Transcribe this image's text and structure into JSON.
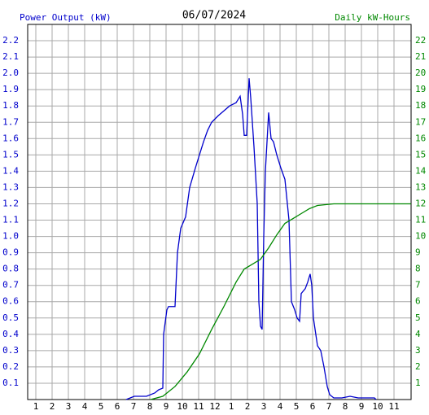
{
  "chart_data": {
    "type": "line",
    "title": "06/07/2024",
    "y_label": "Power Output (kW)",
    "y2_label": "Daily kW-Hours",
    "xlim": [
      0.5,
      24.05
    ],
    "xticks": [
      1,
      2,
      3,
      4,
      5,
      6,
      7,
      8,
      9,
      10,
      11,
      12,
      {
        "value": 13,
        "label": "1"
      },
      {
        "value": 14,
        "label": "2"
      },
      {
        "value": 15,
        "label": "3"
      },
      {
        "value": 16,
        "label": "4"
      },
      {
        "value": 17,
        "label": "5"
      },
      {
        "value": 18,
        "label": "6"
      },
      {
        "value": 19,
        "label": "7"
      },
      {
        "value": 20,
        "label": "8"
      },
      {
        "value": 21,
        "label": "9"
      },
      {
        "value": 22,
        "label": "10"
      },
      {
        "value": 23,
        "label": "11"
      }
    ],
    "ylim": [
      0,
      2.3
    ],
    "yticks": [
      0.1,
      0.2,
      0.3,
      0.4,
      0.5,
      0.6,
      0.7,
      0.8,
      0.9,
      {
        "value": 1,
        "label": "1.0"
      },
      1.1,
      1.2,
      1.3,
      1.4,
      1.5,
      1.6,
      1.7,
      1.8,
      1.9,
      {
        "value": 2,
        "label": "2.0"
      },
      2.1,
      2.2
    ],
    "y2lim": [
      0,
      23
    ],
    "y2ticks": [
      1,
      2,
      3,
      4,
      5,
      6,
      7,
      8,
      9,
      10,
      11,
      12,
      13,
      14,
      15,
      16,
      17,
      18,
      19,
      20,
      21,
      22
    ],
    "grid": true,
    "series": [
      {
        "color": "#0000cc",
        "x": [
          6.55,
          6.8,
          7.05,
          7.8,
          8.3,
          8.55,
          8.8,
          8.85,
          9.05,
          9.15,
          9.55,
          9.7,
          9.9,
          10.2,
          10.45,
          10.8,
          11.05,
          11.3,
          11.55,
          11.8,
          12.2,
          12.55,
          12.9,
          13.3,
          13.55,
          13.7,
          13.8,
          13.95,
          14.1,
          14.2,
          14.4,
          14.6,
          14.7,
          14.8,
          14.9,
          15.0,
          15.1,
          15.3,
          15.45,
          15.6,
          15.8,
          16.05,
          16.3,
          16.55,
          16.7,
          16.9,
          17.05,
          17.2,
          17.3,
          17.55,
          17.7,
          17.85,
          17.95,
          18.05,
          18.3,
          18.5,
          18.7,
          18.9,
          19.05,
          19.3,
          19.8,
          20.3,
          20.8,
          21.8,
          21.9
        ],
        "values": [
          0,
          0.01,
          0.02,
          0.02,
          0.04,
          0.06,
          0.07,
          0.4,
          0.55,
          0.57,
          0.57,
          0.9,
          1.05,
          1.12,
          1.3,
          1.42,
          1.5,
          1.58,
          1.65,
          1.7,
          1.74,
          1.77,
          1.8,
          1.82,
          1.86,
          1.75,
          1.62,
          1.62,
          1.97,
          1.85,
          1.55,
          1.2,
          0.6,
          0.45,
          0.43,
          1.0,
          1.4,
          1.76,
          1.6,
          1.58,
          1.5,
          1.42,
          1.35,
          1.1,
          0.6,
          0.55,
          0.5,
          0.48,
          0.65,
          0.68,
          0.72,
          0.77,
          0.7,
          0.5,
          0.33,
          0.3,
          0.2,
          0.08,
          0.03,
          0.01,
          0.01,
          0.02,
          0.01,
          0.01,
          0
        ]
      },
      {
        "color": "#008800",
        "axis": "y2",
        "x": [
          8.05,
          8.8,
          9.55,
          10.3,
          11.05,
          11.8,
          12.55,
          13.3,
          13.8,
          14.3,
          14.8,
          15.3,
          15.8,
          16.3,
          16.8,
          17.3,
          17.8,
          18.3,
          18.8,
          19.3,
          24.05
        ],
        "values": [
          0,
          0.2,
          0.8,
          1.7,
          2.8,
          4.3,
          5.7,
          7.2,
          8,
          8.3,
          8.6,
          9.3,
          10.1,
          10.8,
          11.1,
          11.4,
          11.7,
          11.9,
          11.95,
          12,
          12
        ]
      }
    ]
  }
}
